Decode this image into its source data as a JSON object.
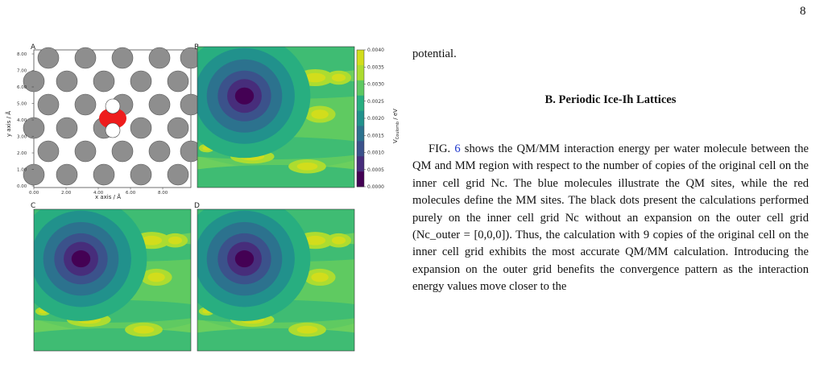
{
  "page": {
    "number": "8"
  },
  "figure": {
    "panels": [
      "A",
      "B",
      "C",
      "D"
    ],
    "panel_a": {
      "x_axis_label": "x axis / Å",
      "y_axis_label": "y axis / Å",
      "x_ticks": [
        "0.00",
        "2.00",
        "4.00",
        "6.00",
        "8.00"
      ],
      "y_ticks": [
        "0.00",
        "1.00",
        "2.00",
        "3.00",
        "4.00",
        "5.00",
        "6.00",
        "7.00",
        "8.00"
      ]
    },
    "colorbar": {
      "label": "V_Coulomb / eV",
      "ticks": [
        "0.0040",
        "0.0035",
        "0.0030",
        "0.0025",
        "0.0020",
        "0.0015",
        "0.0010",
        "0.0005",
        "0.0000"
      ]
    },
    "colors": {
      "atom_mm": "#8e8e8e",
      "atom_oxygen": "#ee1c1c",
      "atom_hydrogen": "#ffffff",
      "contour_min": "#440154",
      "contour_max": "#d2dd1c"
    }
  },
  "text": {
    "para1": "potential.",
    "section_heading": "B.   Periodic Ice-Ih Lattices",
    "fig_word": "FIG.",
    "fig_number": "6",
    "para2_rest": " shows the QM/MM interaction energy per water molecule between the QM and MM region with respect to the number of copies of the original cell on the inner cell grid Nc. The blue molecules illustrate the QM sites, while the red molecules define the MM sites. The black dots present the calculations performed purely on the inner cell grid Nc without an expansion on the outer cell grid (Nc_outer = [0,0,0]). Thus, the calculation with 9 copies of the original cell on the inner cell grid exhibits the most accurate QM/MM calculation. Introducing the expansion on the outer grid benefits the convergence pattern as the interaction energy values move closer to the"
  }
}
